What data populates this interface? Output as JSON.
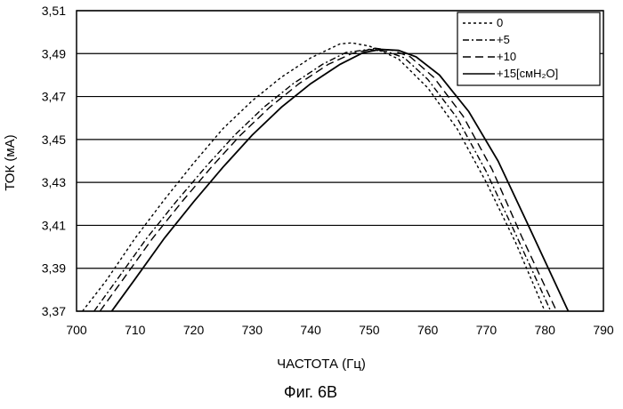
{
  "chart_data": {
    "type": "line",
    "xlabel": "ЧАСТОТА (Гц)",
    "ylabel": "ТОК (мА)",
    "caption": "Фиг. 6В",
    "xlim": [
      700,
      790
    ],
    "ylim": [
      3.37,
      3.51
    ],
    "x_ticks": [
      "700",
      "710",
      "720",
      "730",
      "740",
      "750",
      "760",
      "770",
      "780",
      "790"
    ],
    "y_ticks": [
      "3,37",
      "3,39",
      "3,41",
      "3,43",
      "3,45",
      "3,47",
      "3,49",
      "3,51"
    ],
    "grid": "horizontal",
    "legend_position": "top-right",
    "series": [
      {
        "name": "0",
        "style": "dotted",
        "points": [
          [
            701,
            3.37
          ],
          [
            705,
            3.384
          ],
          [
            710,
            3.404
          ],
          [
            715,
            3.422
          ],
          [
            720,
            3.439
          ],
          [
            725,
            3.455
          ],
          [
            730,
            3.468
          ],
          [
            735,
            3.479
          ],
          [
            740,
            3.488
          ],
          [
            745,
            3.4945
          ],
          [
            747,
            3.495
          ],
          [
            750,
            3.4935
          ],
          [
            753,
            3.49
          ],
          [
            755,
            3.4875
          ],
          [
            760,
            3.474
          ],
          [
            765,
            3.455
          ],
          [
            770,
            3.43
          ],
          [
            775,
            3.402
          ],
          [
            780,
            3.37
          ]
        ]
      },
      {
        "name": "+5",
        "style": "dash-dot",
        "points": [
          [
            703,
            3.37
          ],
          [
            707,
            3.385
          ],
          [
            712,
            3.404
          ],
          [
            717,
            3.421
          ],
          [
            722,
            3.437
          ],
          [
            727,
            3.452
          ],
          [
            732,
            3.465
          ],
          [
            737,
            3.476
          ],
          [
            742,
            3.485
          ],
          [
            746,
            3.4905
          ],
          [
            750,
            3.492
          ],
          [
            753,
            3.491
          ],
          [
            756,
            3.488
          ],
          [
            760,
            3.478
          ],
          [
            765,
            3.46
          ],
          [
            770,
            3.435
          ],
          [
            775,
            3.406
          ],
          [
            781,
            3.37
          ]
        ]
      },
      {
        "name": "+10",
        "style": "dashed",
        "points": [
          [
            704,
            3.37
          ],
          [
            708,
            3.385
          ],
          [
            713,
            3.404
          ],
          [
            718,
            3.421
          ],
          [
            723,
            3.437
          ],
          [
            728,
            3.452
          ],
          [
            733,
            3.465
          ],
          [
            738,
            3.476
          ],
          [
            743,
            3.485
          ],
          [
            747,
            3.49
          ],
          [
            751,
            3.4925
          ],
          [
            754,
            3.4915
          ],
          [
            757,
            3.4885
          ],
          [
            761,
            3.479
          ],
          [
            766,
            3.461
          ],
          [
            771,
            3.436
          ],
          [
            776,
            3.405
          ],
          [
            782,
            3.37
          ]
        ]
      },
      {
        "name": "+15[смH₂O]",
        "style": "solid",
        "points": [
          [
            706,
            3.37
          ],
          [
            710,
            3.385
          ],
          [
            715,
            3.404
          ],
          [
            720,
            3.421
          ],
          [
            725,
            3.437
          ],
          [
            730,
            3.452
          ],
          [
            735,
            3.465
          ],
          [
            740,
            3.476
          ],
          [
            745,
            3.485
          ],
          [
            749,
            3.4905
          ],
          [
            752,
            3.492
          ],
          [
            755,
            3.4915
          ],
          [
            758,
            3.4885
          ],
          [
            762,
            3.48
          ],
          [
            767,
            3.463
          ],
          [
            772,
            3.44
          ],
          [
            777,
            3.411
          ],
          [
            784,
            3.37
          ]
        ]
      }
    ]
  }
}
